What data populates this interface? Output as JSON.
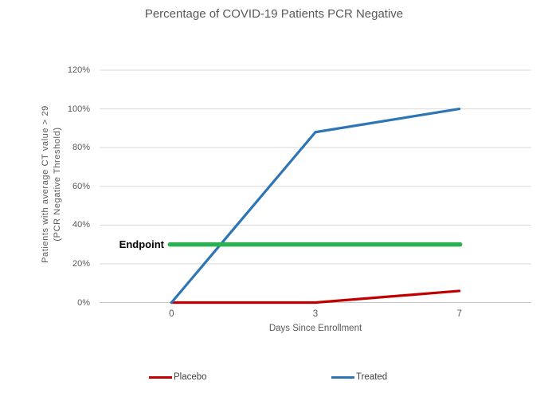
{
  "chart_data": {
    "type": "line",
    "title": "Percentage of COVID-19 Patients PCR Negative",
    "xlabel": "Days Since Enrollment",
    "ylabel_lines": [
      "Patients with average CT value > 29",
      "(PCR Negative Threshold)"
    ],
    "categories": [
      "0",
      "3",
      "7"
    ],
    "series": [
      {
        "name": "Placebo",
        "color": "#C00000",
        "values": [
          0,
          0,
          6
        ]
      },
      {
        "name": "Treated",
        "color": "#2E75B6",
        "values": [
          0,
          88,
          100
        ]
      }
    ],
    "annotation": {
      "label": "Endpoint",
      "type": "horizontal-line",
      "value": 30,
      "color": "#2BB052"
    },
    "ylim": [
      0,
      120
    ],
    "y_ticks": [
      {
        "value": 0,
        "label": "0%"
      },
      {
        "value": 20,
        "label": "20%"
      },
      {
        "value": 40,
        "label": "40%"
      },
      {
        "value": 60,
        "label": "60%"
      },
      {
        "value": 80,
        "label": "80%"
      },
      {
        "value": 100,
        "label": "100%"
      },
      {
        "value": 120,
        "label": "120%"
      }
    ],
    "grid": true,
    "legend_position": "bottom",
    "colors": {
      "gridline": "#D9D9D9",
      "axis_line": "#C6C6C6",
      "text": "#595959",
      "endpoint_text": "#000000",
      "background": "#FFFFFF"
    }
  }
}
